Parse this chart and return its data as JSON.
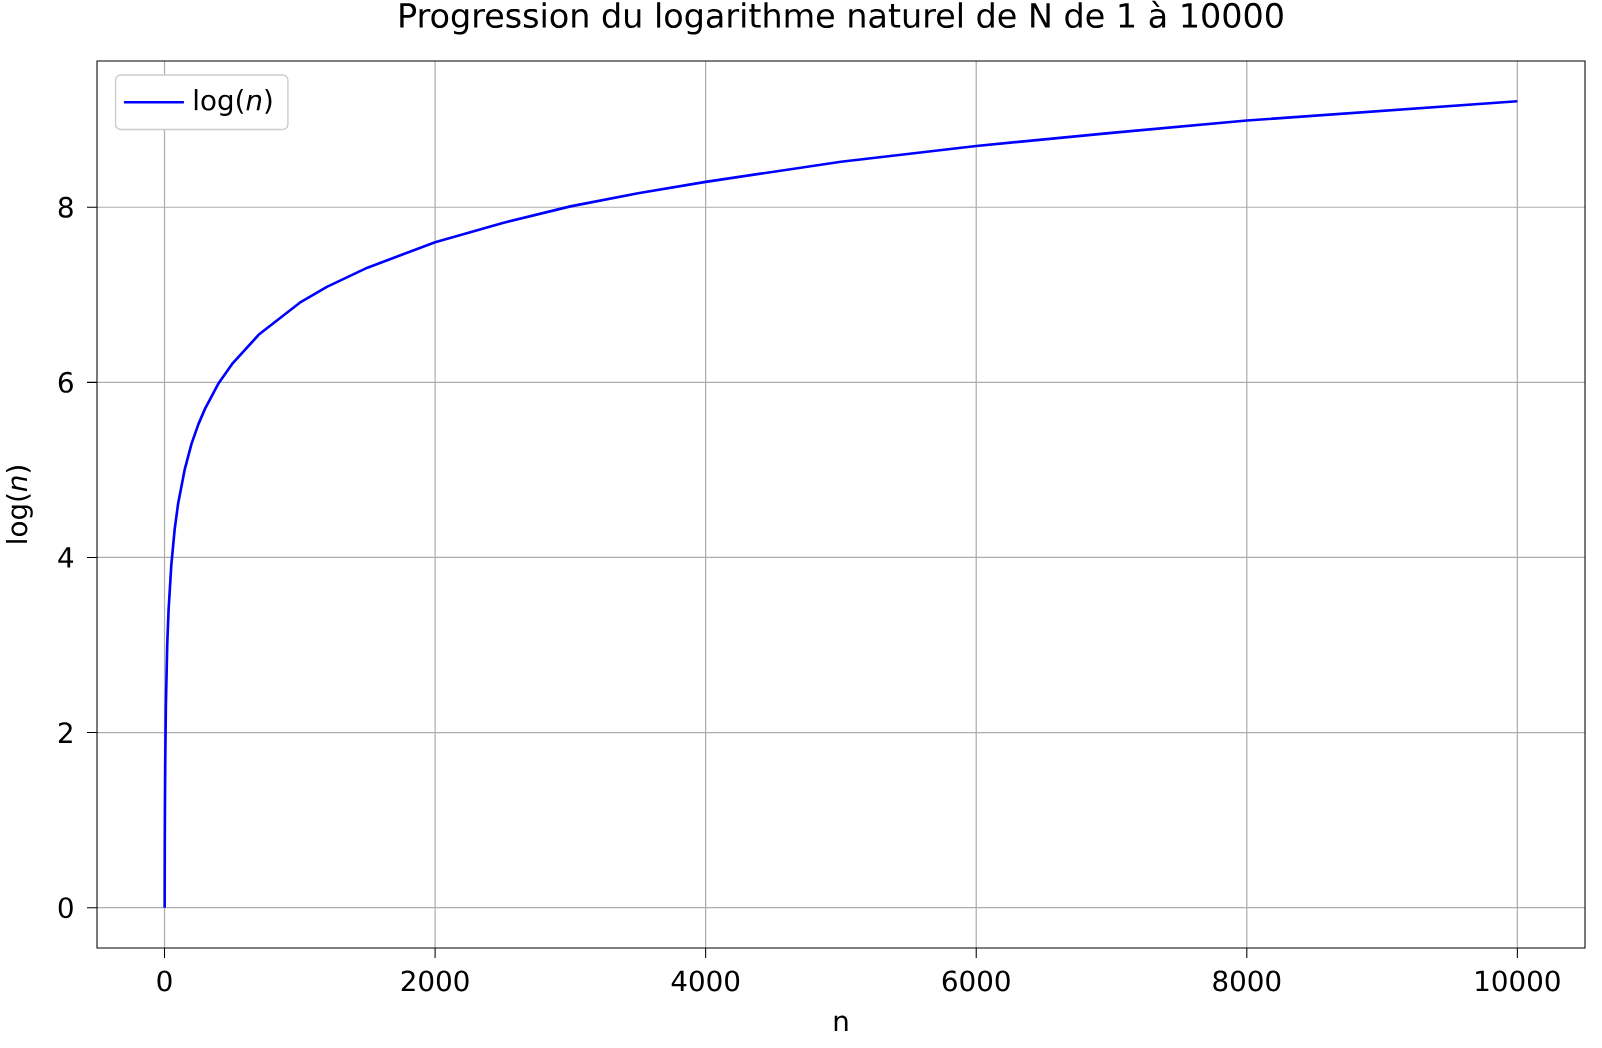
{
  "chart_data": {
    "type": "line",
    "title": "Progression du logarithme naturel de N de 1 à 10000",
    "xlabel": "n",
    "ylabel": "log(*n*)",
    "x": [
      1,
      2,
      3,
      5,
      10,
      20,
      30,
      50,
      75,
      100,
      150,
      200,
      250,
      300,
      400,
      500,
      700,
      1000,
      1200,
      1500,
      2000,
      2500,
      3000,
      3500,
      4000,
      5000,
      6000,
      7000,
      8000,
      9000,
      10000
    ],
    "series": [
      {
        "name": "log(*n*)",
        "color": "#0000ff",
        "values": [
          0,
          0.69,
          1.1,
          1.61,
          2.3,
          3.0,
          3.4,
          3.91,
          4.32,
          4.61,
          5.01,
          5.3,
          5.52,
          5.7,
          5.99,
          6.21,
          6.55,
          6.91,
          7.09,
          7.31,
          7.6,
          7.82,
          8.01,
          8.16,
          8.29,
          8.52,
          8.7,
          8.85,
          8.99,
          9.1,
          9.21
        ]
      }
    ],
    "xlim": [
      -499,
      10500
    ],
    "ylim": [
      -0.46,
      9.67
    ],
    "xticks": [
      0,
      2000,
      4000,
      6000,
      8000,
      10000
    ],
    "yticks": [
      0,
      2,
      4,
      6,
      8
    ],
    "grid": true,
    "legend": "top left"
  }
}
